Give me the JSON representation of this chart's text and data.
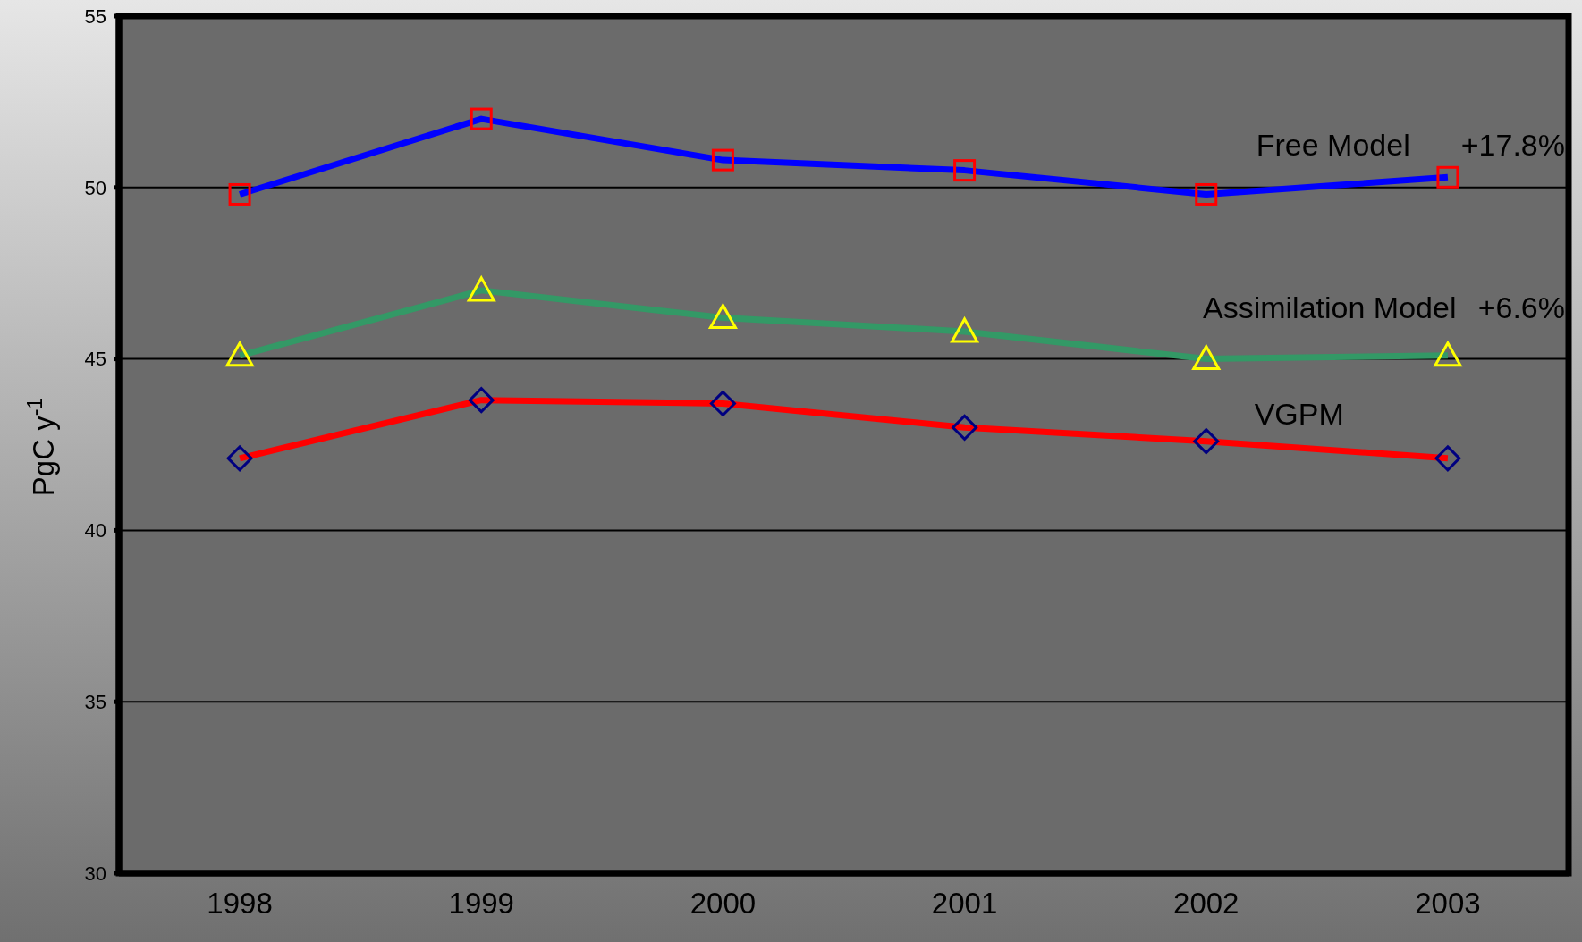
{
  "chart_data": {
    "type": "line",
    "ylabel": "PgC y$^{-1}$",
    "categories": [
      "1998",
      "1999",
      "2000",
      "2001",
      "2002",
      "2003"
    ],
    "series": [
      {
        "name": "Free Model",
        "color": "#0000ff",
        "marker": "square",
        "colors": [
          "#ff0000",
          "#ff0000",
          "#ff0000",
          "#ff0000",
          "#ff0000",
          "#ff0000"
        ],
        "values": [
          49.8,
          52.0,
          50.8,
          50.5,
          49.8,
          50.3
        ]
      },
      {
        "name": "Assimilation Model",
        "color": "#339966",
        "marker": "triangle",
        "colors": [
          "#ffff00",
          "#ffff00",
          "#ffff00",
          "#ffff00",
          "#ffff00",
          "#ffff00"
        ],
        "values": [
          45.1,
          47.0,
          46.2,
          45.8,
          45.0,
          45.1
        ]
      },
      {
        "name": "VGPM",
        "color": "#ff0000",
        "marker": "diamond",
        "colors": [
          "#000080",
          "#000080",
          "#000080",
          "#000080",
          "#000080",
          "#000080"
        ],
        "values": [
          42.1,
          43.8,
          43.7,
          43.0,
          42.6,
          42.1
        ]
      }
    ],
    "annotations": [
      "+17.8%",
      "+6.6%"
    ],
    "ylim": [
      30,
      55
    ],
    "yticks": [
      30,
      35,
      40,
      45,
      50,
      55
    ],
    "grid": "y"
  }
}
